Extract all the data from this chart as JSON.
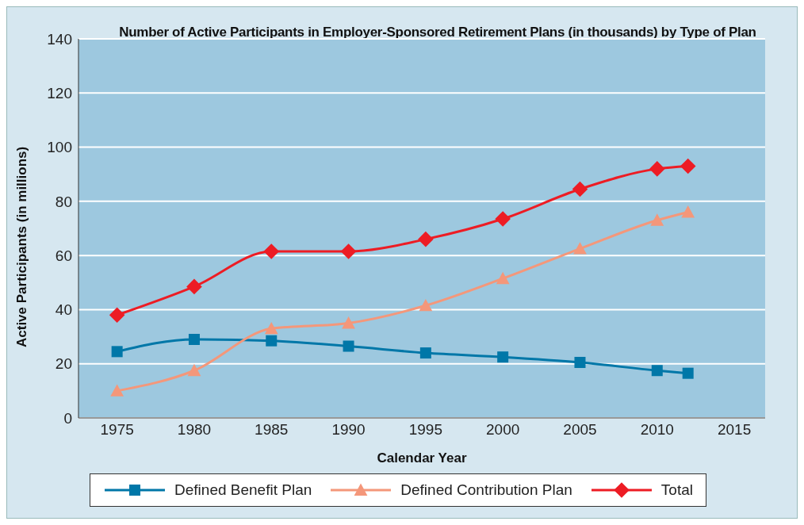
{
  "chart_data": {
    "type": "line",
    "title": "Number of Active Participants in Employer-Sponsored Retirement Plans (in thousands) by Type of Plan",
    "xlabel": "Calendar Year",
    "ylabel": "Active Participants (in millions)",
    "x": [
      1975,
      1980,
      1985,
      1990,
      1995,
      2000,
      2005,
      2010,
      2012
    ],
    "series": [
      {
        "name": "Defined Benefit Plan",
        "color": "#0077a8",
        "marker": "square",
        "values": [
          24.5,
          29,
          28.5,
          26.5,
          24,
          22.5,
          20.5,
          17.5,
          16.5
        ]
      },
      {
        "name": "Defined Contribution Plan",
        "color": "#f4977a",
        "marker": "triangle",
        "values": [
          10,
          17.5,
          33,
          35,
          41.5,
          51.5,
          62.5,
          73,
          76
        ]
      },
      {
        "name": "Total",
        "color": "#ed1c24",
        "marker": "diamond",
        "values": [
          38,
          48.5,
          61.5,
          61.5,
          66,
          73.5,
          84.5,
          92,
          93
        ]
      }
    ],
    "xlim": [
      1972.5,
      2017
    ],
    "xticks": [
      1975,
      1980,
      1985,
      1990,
      1995,
      2000,
      2005,
      2010,
      2015
    ],
    "ylim": [
      0,
      140
    ],
    "yticks": [
      0,
      20,
      40,
      60,
      80,
      100,
      120,
      140
    ],
    "grid": "y",
    "legend": "bottom",
    "line_style": "solid"
  }
}
